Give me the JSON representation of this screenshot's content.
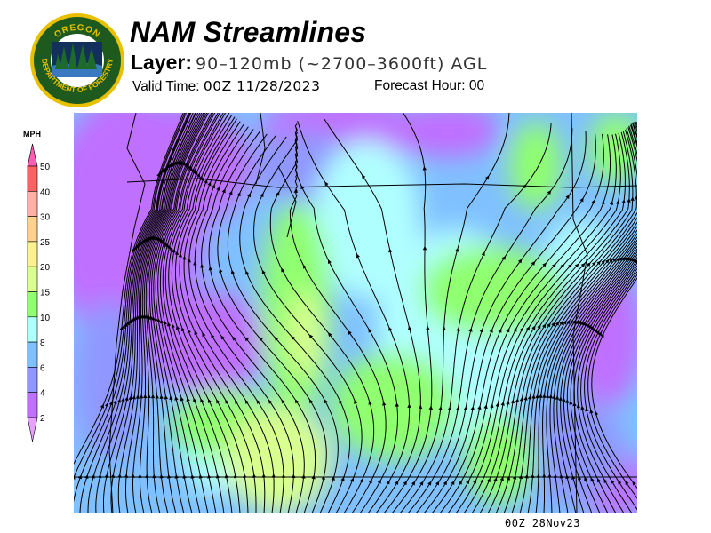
{
  "logo": {
    "top_text": "OREGON",
    "bottom_text": "DEPARTMENT OF FORESTRY"
  },
  "header": {
    "title": "NAM Streamlines",
    "layer_label": "Layer:",
    "layer_value": "90–120mb (~2700–3600ft) AGL",
    "valid_time_label": "Valid Time:",
    "valid_time_value": "00Z 11/28/2023",
    "forecast_hour_label": "Forecast Hour:",
    "forecast_hour_value": "00"
  },
  "legend": {
    "unit": "MPH",
    "ticks": [
      "50",
      "40",
      "30",
      "25",
      "20",
      "15",
      "10",
      "8",
      "6",
      "4",
      "2"
    ],
    "colors": {
      "above_50": "#ff5cb4",
      "40-50": "#ff6060",
      "30-40": "#ffb0a0",
      "25-30": "#ffd090",
      "20-25": "#fff090",
      "15-20": "#d8ff90",
      "10-15": "#90ff70",
      "8-10": "#b0ffff",
      "6-8": "#80c0ff",
      "4-6": "#9098ff",
      "2-4": "#c070ff",
      "below_2": "#e8a0ff"
    }
  },
  "footer": {
    "stamp": "00Z 28Nov23"
  }
}
